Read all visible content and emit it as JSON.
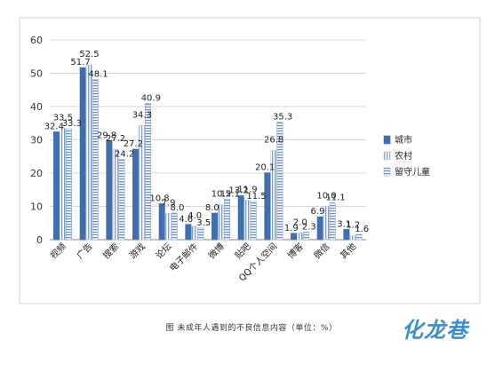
{
  "chart_data": {
    "type": "bar",
    "categories": [
      "视频",
      "广告",
      "搜索",
      "游戏",
      "论坛",
      "电子邮件",
      "微博",
      "贴吧",
      "QQ个人空间",
      "博客",
      "微信",
      "其他"
    ],
    "series": [
      {
        "name": "城市",
        "values": [
          32.4,
          51.7,
          29.8,
          27.2,
          10.8,
          4.6,
          8.0,
          13.2,
          20.1,
          1.9,
          6.9,
          3.1
        ]
      },
      {
        "name": "农村",
        "values": [
          33.5,
          52.5,
          27.2,
          34.3,
          7.9,
          4.0,
          10.5,
          11.9,
          26.8,
          2.0,
          10.0,
          1.2
        ]
      },
      {
        "name": "留守儿童",
        "values": [
          33.3,
          48.1,
          24.2,
          40.9,
          8.0,
          3.5,
          12.1,
          11.5,
          35.3,
          2.3,
          11.1,
          1.6
        ]
      }
    ],
    "ylim": [
      0,
      60
    ],
    "yticks": [
      0,
      10,
      20,
      30,
      40,
      50,
      60
    ],
    "grid": true,
    "legend_position": "right",
    "colors": [
      "#3f6fb0",
      "#c9d6ec",
      "#8aa8dc"
    ],
    "caption": "图  未成年人遇到的不良信息内容（单位：%）"
  },
  "watermark": "化龙巷"
}
